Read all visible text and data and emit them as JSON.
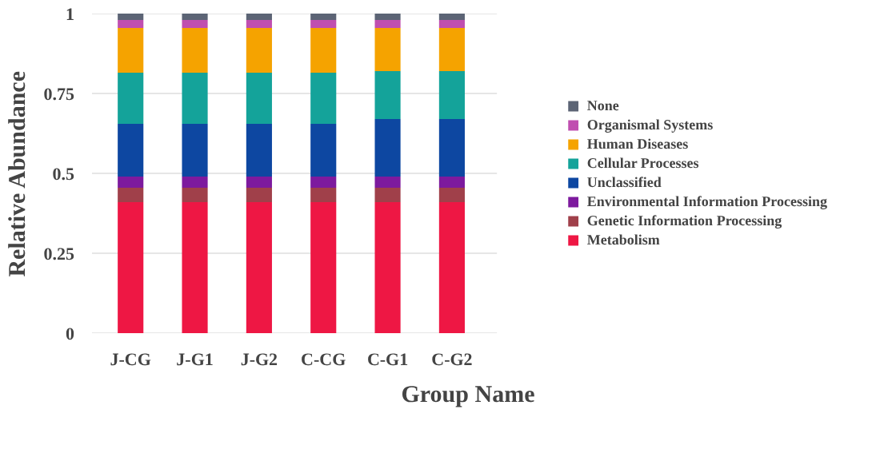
{
  "chart_data": {
    "type": "bar",
    "stacked": true,
    "xlabel": "Group Name",
    "ylabel": "Relative Abundance",
    "categories": [
      "J-CG",
      "J-G1",
      "J-G2",
      "C-CG",
      "C-G1",
      "C-G2"
    ],
    "ylim": [
      0,
      1
    ],
    "yticks": [
      0,
      0.25,
      0.5,
      0.75,
      1
    ],
    "grid": "y",
    "legend": "right",
    "series": [
      {
        "name": "Metabolism",
        "color": "#ee1744",
        "values": [
          0.41,
          0.41,
          0.41,
          0.41,
          0.41,
          0.41
        ]
      },
      {
        "name": "Genetic Information Processing",
        "color": "#a0404a",
        "values": [
          0.045,
          0.045,
          0.045,
          0.045,
          0.045,
          0.045
        ]
      },
      {
        "name": "Environmental Information Processing",
        "color": "#7d1a9e",
        "values": [
          0.035,
          0.035,
          0.035,
          0.035,
          0.035,
          0.035
        ]
      },
      {
        "name": "Unclassified",
        "color": "#0d47a1",
        "values": [
          0.165,
          0.165,
          0.165,
          0.165,
          0.18,
          0.18
        ]
      },
      {
        "name": "Cellular Processes",
        "color": "#14a39a",
        "values": [
          0.16,
          0.16,
          0.16,
          0.16,
          0.15,
          0.15
        ]
      },
      {
        "name": "Human Diseases",
        "color": "#f5a300",
        "values": [
          0.14,
          0.14,
          0.14,
          0.14,
          0.135,
          0.135
        ]
      },
      {
        "name": "Organismal Systems",
        "color": "#c04fb0",
        "values": [
          0.025,
          0.025,
          0.025,
          0.025,
          0.025,
          0.025
        ]
      },
      {
        "name": "None",
        "color": "#5c6475",
        "values": [
          0.02,
          0.02,
          0.02,
          0.02,
          0.02,
          0.02
        ]
      }
    ]
  }
}
